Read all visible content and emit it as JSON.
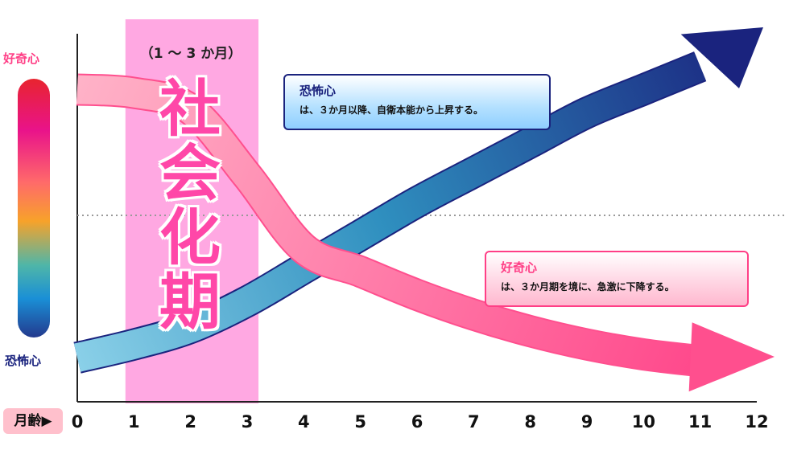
{
  "chart_data": {
    "type": "line",
    "xlabel": "月齢▶",
    "x": [
      0,
      1,
      2,
      3,
      4,
      5,
      6,
      7,
      8,
      9,
      10,
      11,
      12
    ],
    "tick_labels": [
      "0",
      "1",
      "2",
      "3",
      "4",
      "5",
      "6",
      "7",
      "8",
      "9",
      "10",
      "11",
      "12"
    ],
    "y_scale_labels": {
      "top": "好奇心",
      "bottom": "恐怖心"
    },
    "highlight": {
      "x_range": [
        0.85,
        3.2
      ],
      "label": "社会化期",
      "sublabel": "（1 ～ 3 か月）",
      "color": "#ff99dd"
    },
    "reference_line": {
      "y": 0.5,
      "style": "dotted"
    },
    "series": [
      {
        "name": "好奇心",
        "color": "#ff4f8e",
        "x": [
          0,
          1,
          2,
          3,
          4,
          5,
          6,
          7,
          8,
          9,
          10,
          11,
          12
        ],
        "y": [
          0.88,
          0.87,
          0.82,
          0.62,
          0.4,
          0.33,
          0.26,
          0.2,
          0.15,
          0.11,
          0.08,
          0.06,
          0.05
        ]
      },
      {
        "name": "恐怖心",
        "color": "#1a237e",
        "x": [
          0,
          1,
          2,
          3,
          4,
          5,
          6,
          7,
          8,
          9,
          10,
          11,
          12
        ],
        "y": [
          0.07,
          0.11,
          0.16,
          0.24,
          0.34,
          0.44,
          0.54,
          0.63,
          0.72,
          0.81,
          0.88,
          0.95,
          1.0
        ]
      }
    ]
  },
  "annotations": {
    "fear": {
      "title": "恐怖心",
      "text": "は、３か月以降、自衛本能から上昇する。"
    },
    "curiosity": {
      "title": "好奇心",
      "text": "は、３か月期を境に、急激に下降する。"
    }
  },
  "colors": {
    "curiosity": "#ff4f8e",
    "fear": "#1a237e",
    "highlight": "#ff99dd"
  }
}
